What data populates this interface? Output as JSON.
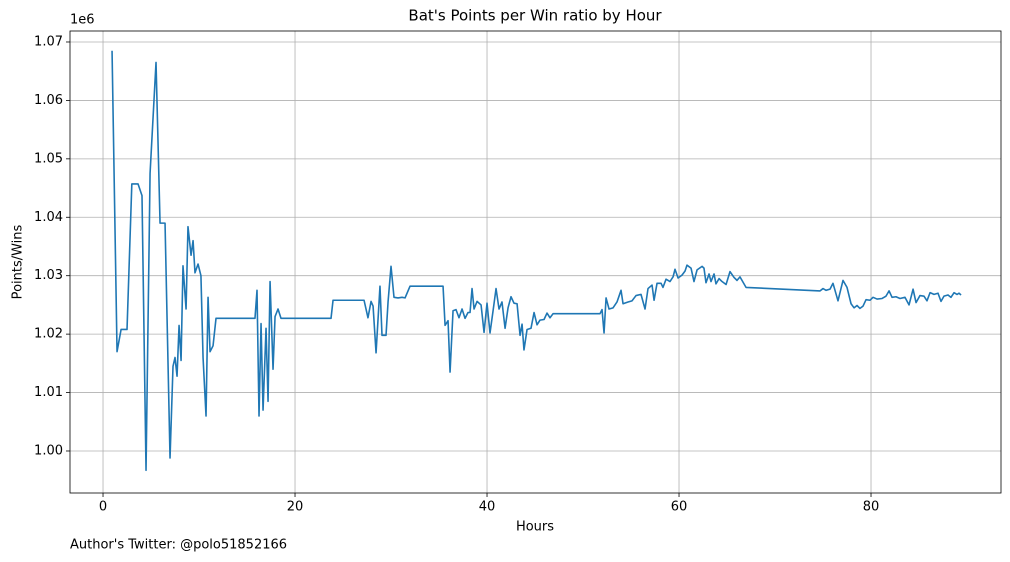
{
  "chart_data": {
    "type": "line",
    "title": "Bat's Points per Win ratio by Hour",
    "x_label": "Hours",
    "y_label": "Points/Wins",
    "y_offset_label": "1e6",
    "footer": "Author's Twitter: @polo51852166",
    "color": "#1f77b4",
    "grid": true,
    "xlim": [
      -3.44,
      93.54
    ],
    "ylim": [
      0.99281,
      1.07188
    ],
    "xticks": [
      0,
      20,
      40,
      60,
      80
    ],
    "yticks": [
      {
        "value": 1.0,
        "label": "1.00"
      },
      1.01,
      1.02,
      1.03,
      1.04,
      1.05,
      1.06,
      1.07
    ],
    "x": [
      0.94,
      1.46,
      1.88,
      2.5,
      3.0,
      3.65,
      4.06,
      4.48,
      4.9,
      5.52,
      5.94,
      6.46,
      6.98,
      7.29,
      7.5,
      7.71,
      7.92,
      8.13,
      8.33,
      8.65,
      8.85,
      9.17,
      9.38,
      9.58,
      9.9,
      10.2,
      10.42,
      10.73,
      10.94,
      11.15,
      11.46,
      11.77,
      15.83,
      16.04,
      16.25,
      16.46,
      16.67,
      16.98,
      17.19,
      17.4,
      17.71,
      17.92,
      18.23,
      18.54,
      23.75,
      23.96,
      27.19,
      27.6,
      27.92,
      28.13,
      28.44,
      28.85,
      29.06,
      29.48,
      29.69,
      30.0,
      30.31,
      30.73,
      31.15,
      31.46,
      31.98,
      35.42,
      35.63,
      35.94,
      36.15,
      36.46,
      36.77,
      37.08,
      37.4,
      37.71,
      38.02,
      38.23,
      38.44,
      38.65,
      38.96,
      39.38,
      39.69,
      40.0,
      40.31,
      40.63,
      40.94,
      41.25,
      41.56,
      41.88,
      42.19,
      42.5,
      42.81,
      43.13,
      43.44,
      43.65,
      43.85,
      44.17,
      44.58,
      44.9,
      45.21,
      45.52,
      45.94,
      46.25,
      46.56,
      46.88,
      51.77,
      51.98,
      52.19,
      52.4,
      52.71,
      53.13,
      53.54,
      53.96,
      54.17,
      54.69,
      55.1,
      55.52,
      56.04,
      56.46,
      56.77,
      57.19,
      57.4,
      57.71,
      58.13,
      58.33,
      58.65,
      59.06,
      59.38,
      59.58,
      59.9,
      60.31,
      60.63,
      60.83,
      61.25,
      61.56,
      61.88,
      62.4,
      62.6,
      62.81,
      63.13,
      63.33,
      63.65,
      63.85,
      64.17,
      64.48,
      64.9,
      65.31,
      65.73,
      66.04,
      66.35,
      66.98,
      74.69,
      75.0,
      75.31,
      75.73,
      76.04,
      76.56,
      77.08,
      77.5,
      77.92,
      78.23,
      78.54,
      78.85,
      79.17,
      79.48,
      79.9,
      80.21,
      80.63,
      81.15,
      81.56,
      81.88,
      82.19,
      82.6,
      83.02,
      83.54,
      83.96,
      84.38,
      84.69,
      85.1,
      85.52,
      85.83,
      86.15,
      86.56,
      86.98,
      87.29,
      87.6,
      88.02,
      88.33,
      88.65,
      88.96,
      89.17,
      89.38
    ],
    "values": [
      1.0685,
      1.017,
      1.0208,
      1.0208,
      1.0457,
      1.0457,
      1.0437,
      0.9967,
      1.0475,
      1.0665,
      1.039,
      1.039,
      0.9988,
      1.0145,
      1.016,
      1.0128,
      1.0215,
      1.0155,
      1.0317,
      1.0243,
      1.0384,
      1.0335,
      1.036,
      1.0305,
      1.032,
      1.03,
      1.016,
      1.006,
      1.0263,
      1.017,
      1.018,
      1.0227,
      1.0227,
      1.0275,
      1.006,
      1.0218,
      1.007,
      1.021,
      1.0085,
      1.029,
      1.014,
      1.023,
      1.0243,
      1.0227,
      1.0227,
      1.0258,
      1.0258,
      1.0228,
      1.0256,
      1.0248,
      1.0168,
      1.0282,
      1.0198,
      1.0198,
      1.0255,
      1.0316,
      1.0263,
      1.0262,
      1.0263,
      1.0262,
      1.0282,
      1.0282,
      1.0215,
      1.0223,
      1.0135,
      1.024,
      1.0242,
      1.0228,
      1.0243,
      1.0227,
      1.0237,
      1.0237,
      1.0278,
      1.0243,
      1.0256,
      1.025,
      1.0203,
      1.0253,
      1.0202,
      1.024,
      1.0278,
      1.0243,
      1.0255,
      1.021,
      1.0245,
      1.0264,
      1.0253,
      1.0252,
      1.0198,
      1.0217,
      1.0173,
      1.0208,
      1.021,
      1.0237,
      1.0216,
      1.0224,
      1.0225,
      1.0236,
      1.0228,
      1.0235,
      1.0235,
      1.0242,
      1.0202,
      1.0262,
      1.0243,
      1.0245,
      1.0255,
      1.0275,
      1.0252,
      1.0255,
      1.0257,
      1.0266,
      1.0268,
      1.0243,
      1.0278,
      1.0284,
      1.0258,
      1.0287,
      1.0287,
      1.028,
      1.0294,
      1.029,
      1.0298,
      1.0311,
      1.0296,
      1.0301,
      1.0308,
      1.0318,
      1.0313,
      1.029,
      1.031,
      1.0316,
      1.0313,
      1.0288,
      1.0303,
      1.029,
      1.0303,
      1.0286,
      1.0295,
      1.029,
      1.0285,
      1.0307,
      1.0297,
      1.0292,
      1.0298,
      1.028,
      1.0274,
      1.0278,
      1.0275,
      1.0277,
      1.0287,
      1.0257,
      1.0292,
      1.028,
      1.0252,
      1.0245,
      1.0249,
      1.0244,
      1.0248,
      1.0259,
      1.0258,
      1.0263,
      1.026,
      1.0261,
      1.0265,
      1.0274,
      1.0263,
      1.0264,
      1.0261,
      1.0263,
      1.025,
      1.0277,
      1.0254,
      1.0266,
      1.0265,
      1.0257,
      1.0271,
      1.0268,
      1.027,
      1.0256,
      1.0265,
      1.0267,
      1.0263,
      1.0271,
      1.0268,
      1.027,
      1.0267
    ]
  }
}
